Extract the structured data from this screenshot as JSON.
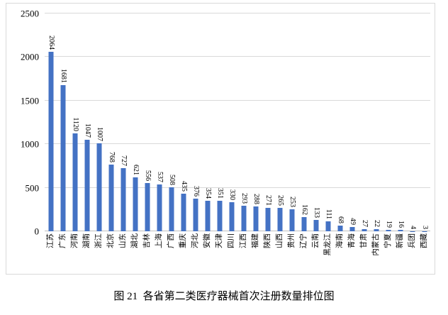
{
  "figure": {
    "caption": "图 21  各省第二类医疗器械首次注册数量排位图"
  },
  "chart_data": {
    "type": "bar",
    "title": "",
    "xlabel": "",
    "ylabel": "",
    "categories": [
      "江苏",
      "广东",
      "河南",
      "湖南",
      "浙江",
      "北京",
      "山东",
      "湖北",
      "吉林",
      "上海",
      "广西",
      "重庆",
      "河北",
      "安徽",
      "天津",
      "四川",
      "江西",
      "福建",
      "陕西",
      "山西",
      "贵州",
      "辽宁",
      "云南",
      "黑龙江",
      "海南",
      "青海",
      "甘肃",
      "内蒙古",
      "宁夏",
      "新疆",
      "兵团",
      "西藏"
    ],
    "values": [
      2064,
      1681,
      1120,
      1047,
      1007,
      768,
      727,
      621,
      556,
      537,
      508,
      435,
      376,
      354,
      351,
      330,
      293,
      288,
      271,
      265,
      253,
      162,
      133,
      111,
      68,
      49,
      27,
      22,
      19,
      16,
      4,
      3
    ],
    "ylim": [
      0,
      2500
    ],
    "yticks": [
      0,
      500,
      1000,
      1500,
      2000,
      2500
    ],
    "grid": true,
    "legend": "none",
    "bar_color": "#4472C4",
    "data_labels": "values shown rotated above each bar",
    "x_label_style": "rotated vertical, reading bottom-to-top"
  }
}
